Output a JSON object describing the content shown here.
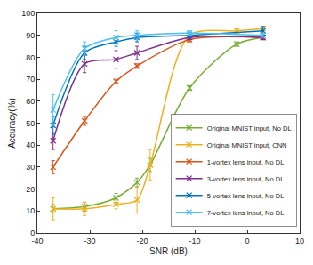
{
  "chart_data": {
    "type": "line",
    "x_label": "SNR (dB)",
    "y_label": "Accuracy(%)",
    "xlim": [
      -40,
      10
    ],
    "xticks": [
      -40,
      -30,
      -20,
      -10,
      0,
      10
    ],
    "ylim": [
      0,
      100
    ],
    "yticks": [
      0,
      10,
      20,
      30,
      40,
      50,
      60,
      70,
      80,
      90,
      100
    ],
    "grid": false,
    "legend": "bottom right",
    "marker": "x",
    "series": [
      {
        "name": "Original MNIST input, No DL",
        "color": "#77AC30",
        "x": [
          -37,
          -31,
          -25,
          -21,
          -18.5,
          -11,
          -2,
          3
        ],
        "values": [
          11,
          12,
          16,
          23,
          31,
          66,
          86,
          89
        ],
        "errors": [
          2,
          2,
          2,
          2,
          3,
          1,
          1,
          1
        ]
      },
      {
        "name": "Original MNIST input, CNN",
        "color": "#EDB120",
        "x": [
          -37,
          -31,
          -25,
          -21,
          -18.5,
          -11,
          -2,
          3
        ],
        "values": [
          11,
          11,
          13,
          15,
          31,
          90,
          92,
          93
        ],
        "errors": [
          5,
          3,
          2,
          6,
          7,
          1,
          1,
          1
        ]
      },
      {
        "name": "1-vortex lens input, No DL",
        "color": "#D95319",
        "x": [
          -37,
          -31,
          -25,
          -21,
          -11,
          3
        ],
        "values": [
          30,
          51,
          69,
          76,
          88,
          89
        ],
        "errors": [
          3,
          2,
          1,
          1,
          1,
          1
        ]
      },
      {
        "name": "3-vortex lens input, No DL",
        "color": "#7E2F8E",
        "x": [
          -37,
          -31,
          -25,
          -21,
          -11,
          3
        ],
        "values": [
          42,
          77,
          79,
          82,
          89,
          89
        ],
        "errors": [
          4,
          4,
          4,
          3,
          1,
          1
        ]
      },
      {
        "name": "5-vortex lens input, No DL",
        "color": "#0072BD",
        "x": [
          -37,
          -31,
          -25,
          -21,
          -11,
          3
        ],
        "values": [
          49,
          82,
          87,
          89,
          90,
          92
        ],
        "errors": [
          4,
          3,
          2,
          2,
          1,
          2
        ]
      },
      {
        "name": "7-vortex lens input, No DL",
        "color": "#4DBEEE",
        "x": [
          -37,
          -31,
          -25,
          -21,
          -11,
          3
        ],
        "values": [
          56,
          84,
          89,
          90,
          91,
          90
        ],
        "errors": [
          7,
          3,
          3,
          2,
          1,
          1
        ]
      }
    ]
  }
}
